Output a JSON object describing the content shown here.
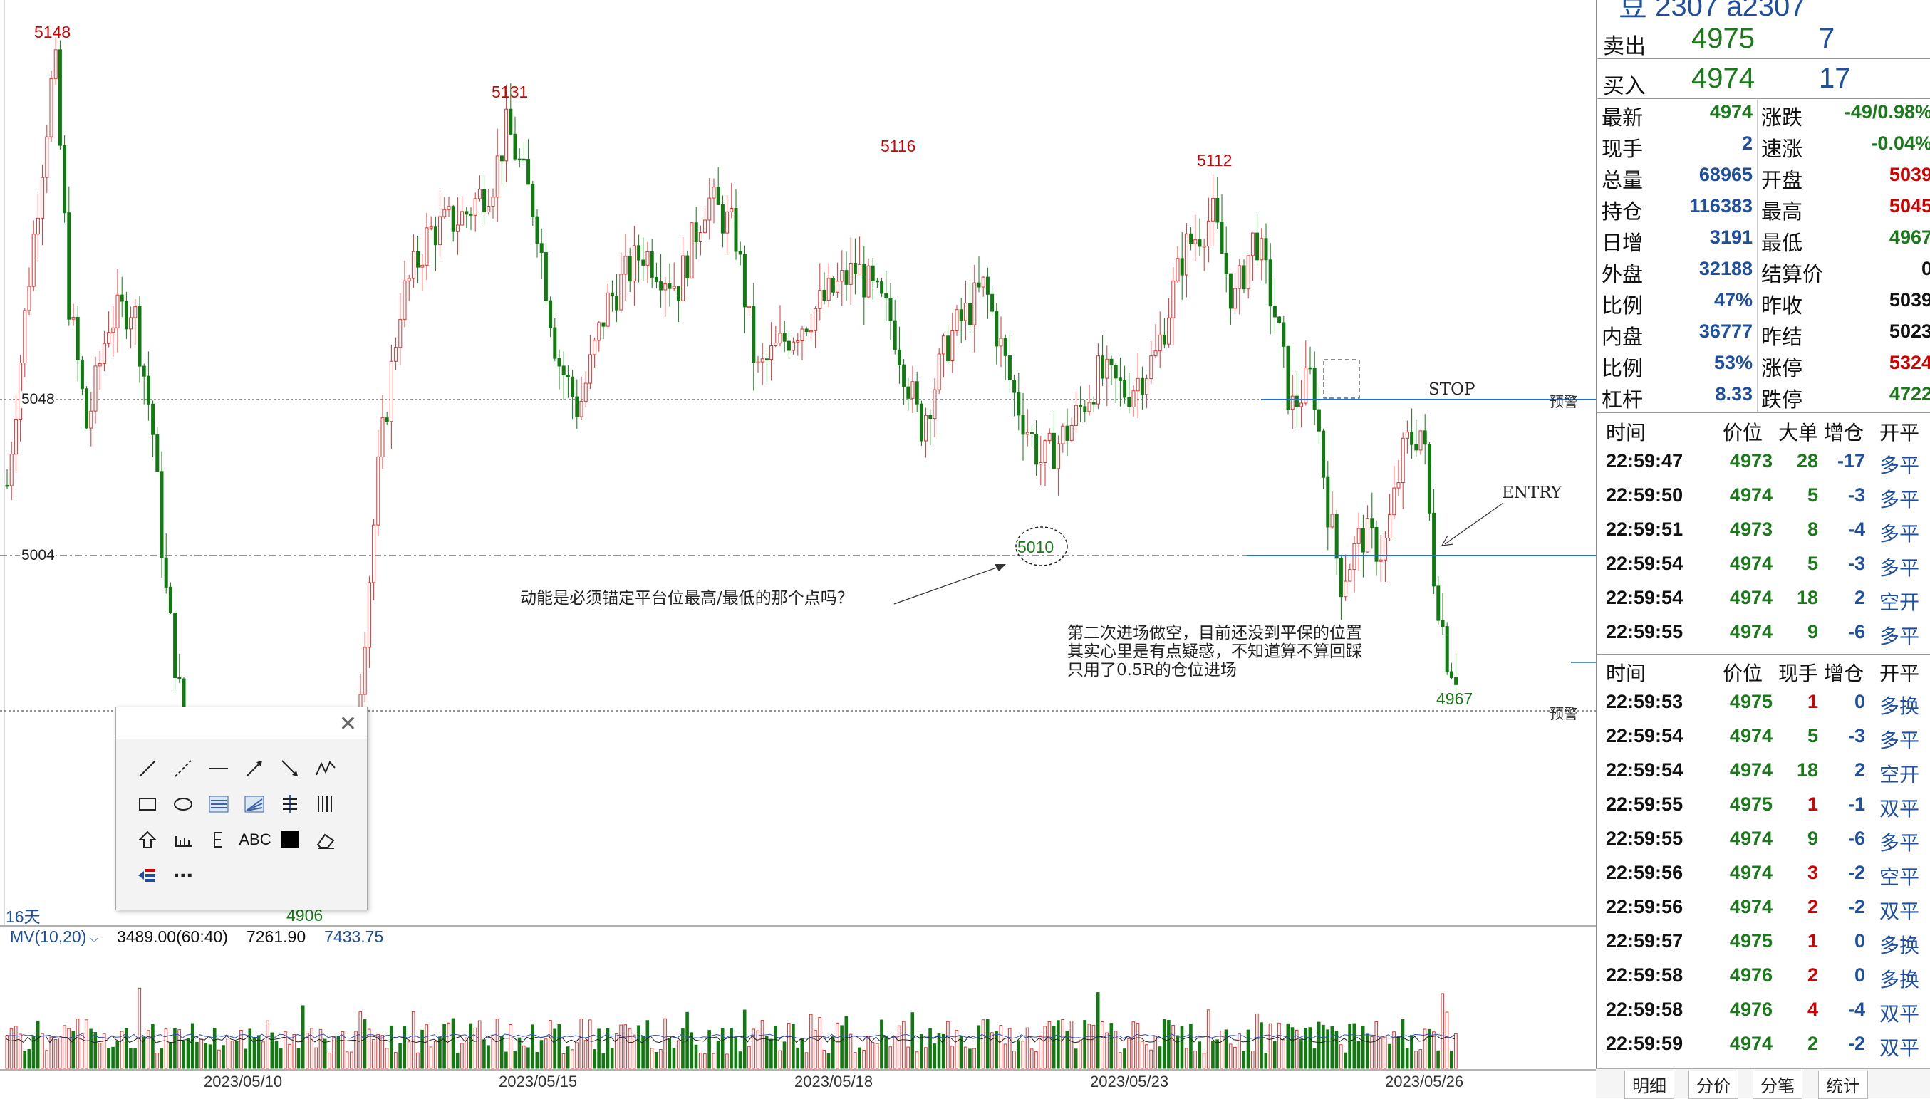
{
  "chart": {
    "peaks": {
      "p1": "5148",
      "p2": "5131",
      "p3": "5116",
      "p4": "5112"
    },
    "lows": {
      "l1": "4906",
      "l2": "4967"
    },
    "circle_label": "5010",
    "price_levels": {
      "upper": "5048",
      "lower": "5004"
    },
    "warn_labels": {
      "w1": "预警",
      "w2": "预警"
    },
    "stop_label": "STOP",
    "entry_label": "ENTRY",
    "period": "16天",
    "annotation_question": "动能是必须锚定平台位最高/最低的那个点吗？",
    "annotation_note": "第二次进场做空，目前还没到平保的位置\n其实心里是有点疑惑，不知道算不算回踩\n只用了0.5R的仓位进场",
    "mv": {
      "name": "MV(10,20)",
      "v1": "3489.00(60:40)",
      "v2": "7261.90",
      "v3": "7433.75"
    },
    "dates": [
      "2023/05/10",
      "2023/05/15",
      "2023/05/18",
      "2023/05/23",
      "2023/05/26"
    ],
    "tools": {
      "row1": [
        "line-icon",
        "dashed-line-icon",
        "horizontal-line-icon",
        "arrow-line-icon",
        "arrow-down-right-icon",
        "zigzag-icon"
      ],
      "row2": [
        "rectangle-icon",
        "ellipse-icon",
        "fibonacci-icon",
        "fibonacci-fan-icon",
        "price-range-icon",
        "vertical-lines-icon"
      ],
      "row3": [
        "arrow-up-icon",
        "ruler-icon",
        "gann-icon"
      ],
      "text_tool": "ABC"
    }
  },
  "panel": {
    "header_partial": "豆  2307  a2307",
    "sell": {
      "label": "卖出",
      "price": "4975",
      "vol": "7"
    },
    "buy": {
      "label": "买入",
      "price": "4974",
      "vol": "17"
    },
    "stats": [
      {
        "l": "最新",
        "v": "4974",
        "c": "#1a7a1a",
        "l2": "涨跌",
        "v2": "-49/0.98%",
        "c2": "#1a7a1a"
      },
      {
        "l": "现手",
        "v": "2",
        "c": "#1e4fa0",
        "l2": "速涨",
        "v2": "-0.04%",
        "c2": "#1a7a1a"
      },
      {
        "l": "总量",
        "v": "68965",
        "c": "#1e4fa0",
        "l2": "开盘",
        "v2": "5039",
        "c2": "#d40000"
      },
      {
        "l": "持仓",
        "v": "116383",
        "c": "#1e4fa0",
        "l2": "最高",
        "v2": "5045",
        "c2": "#d40000"
      },
      {
        "l": "日增",
        "v": "3191",
        "c": "#1e4fa0",
        "l2": "最低",
        "v2": "4967",
        "c2": "#1a7a1a"
      },
      {
        "l": "外盘",
        "v": "32188",
        "c": "#1e4fa0",
        "l2": "结算价",
        "v2": "0",
        "c2": "#111"
      },
      {
        "l": "比例",
        "v": "47%",
        "c": "#1e4fa0",
        "l2": "昨收",
        "v2": "5039",
        "c2": "#111"
      },
      {
        "l": "内盘",
        "v": "36777",
        "c": "#1e4fa0",
        "l2": "昨结",
        "v2": "5023",
        "c2": "#111"
      },
      {
        "l": "比例",
        "v": "53%",
        "c": "#1e4fa0",
        "l2": "涨停",
        "v2": "5324",
        "c2": "#d40000"
      },
      {
        "l": "杠杆",
        "v": "8.33",
        "c": "#1e4fa0",
        "l2": "跌停",
        "v2": "4722",
        "c2": "#1a7a1a"
      }
    ],
    "big_orders": {
      "headers": [
        "时间",
        "价位",
        "大单",
        "增仓",
        "开平"
      ],
      "rows": [
        {
          "t": "22:59:47",
          "p": "4973",
          "q": "28",
          "d": "-17",
          "k": "多平",
          "pc": "#1a7a1a",
          "qc": "#1a7a1a"
        },
        {
          "t": "22:59:50",
          "p": "4974",
          "q": "5",
          "d": "-3",
          "k": "多平",
          "pc": "#1a7a1a",
          "qc": "#1a7a1a"
        },
        {
          "t": "22:59:51",
          "p": "4973",
          "q": "8",
          "d": "-4",
          "k": "多平",
          "pc": "#1a7a1a",
          "qc": "#1a7a1a"
        },
        {
          "t": "22:59:54",
          "p": "4974",
          "q": "5",
          "d": "-3",
          "k": "多平",
          "pc": "#1a7a1a",
          "qc": "#1a7a1a"
        },
        {
          "t": "22:59:54",
          "p": "4974",
          "q": "18",
          "d": "2",
          "k": "空开",
          "pc": "#1a7a1a",
          "qc": "#1a7a1a"
        },
        {
          "t": "22:59:55",
          "p": "4974",
          "q": "9",
          "d": "-6",
          "k": "多平",
          "pc": "#1a7a1a",
          "qc": "#1a7a1a"
        }
      ]
    },
    "ticks": {
      "headers": [
        "时间",
        "价位",
        "现手",
        "增仓",
        "开平"
      ],
      "rows": [
        {
          "t": "22:59:53",
          "p": "4975",
          "q": "1",
          "d": "0",
          "k": "多换",
          "pc": "#1a7a1a",
          "qc": "#d40000"
        },
        {
          "t": "22:59:54",
          "p": "4974",
          "q": "5",
          "d": "-3",
          "k": "多平",
          "pc": "#1a7a1a",
          "qc": "#1a7a1a"
        },
        {
          "t": "22:59:54",
          "p": "4974",
          "q": "18",
          "d": "2",
          "k": "空开",
          "pc": "#1a7a1a",
          "qc": "#1a7a1a"
        },
        {
          "t": "22:59:55",
          "p": "4975",
          "q": "1",
          "d": "-1",
          "k": "双平",
          "pc": "#1a7a1a",
          "qc": "#d40000"
        },
        {
          "t": "22:59:55",
          "p": "4974",
          "q": "9",
          "d": "-6",
          "k": "多平",
          "pc": "#1a7a1a",
          "qc": "#1a7a1a"
        },
        {
          "t": "22:59:56",
          "p": "4974",
          "q": "3",
          "d": "-2",
          "k": "空平",
          "pc": "#1a7a1a",
          "qc": "#d40000"
        },
        {
          "t": "22:59:56",
          "p": "4974",
          "q": "2",
          "d": "-2",
          "k": "双平",
          "pc": "#1a7a1a",
          "qc": "#d40000"
        },
        {
          "t": "22:59:57",
          "p": "4975",
          "q": "1",
          "d": "0",
          "k": "多换",
          "pc": "#1a7a1a",
          "qc": "#d40000"
        },
        {
          "t": "22:59:58",
          "p": "4976",
          "q": "2",
          "d": "0",
          "k": "多换",
          "pc": "#1a7a1a",
          "qc": "#d40000"
        },
        {
          "t": "22:59:58",
          "p": "4976",
          "q": "4",
          "d": "-4",
          "k": "双平",
          "pc": "#1a7a1a",
          "qc": "#d40000"
        },
        {
          "t": "22:59:59",
          "p": "4974",
          "q": "2",
          "d": "-2",
          "k": "双平",
          "pc": "#1a7a1a",
          "qc": "#1a7a1a"
        }
      ]
    },
    "tabs": [
      "明细",
      "分价",
      "分笔",
      "统计"
    ]
  }
}
